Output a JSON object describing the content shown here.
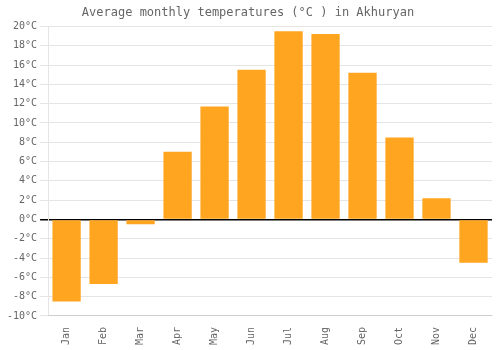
{
  "chart_data": {
    "type": "bar",
    "title": "Average monthly temperatures (°C ) in Akhuryan",
    "categories": [
      "Jan",
      "Feb",
      "Mar",
      "Apr",
      "May",
      "Jun",
      "Jul",
      "Aug",
      "Sep",
      "Oct",
      "Nov",
      "Dec"
    ],
    "values": [
      -8.5,
      -6.7,
      -0.5,
      7.0,
      11.7,
      15.5,
      19.5,
      19.2,
      15.2,
      8.5,
      2.2,
      -4.5
    ],
    "color": "#FFA520",
    "ylim": [
      -10,
      20
    ],
    "yticks": [
      {
        "value": -10,
        "label": "-10°C"
      },
      {
        "value": -8,
        "label": "-8°C"
      },
      {
        "value": -6,
        "label": "-6°C"
      },
      {
        "value": -4,
        "label": "-4°C"
      },
      {
        "value": -2,
        "label": "-2°C"
      },
      {
        "value": 0,
        "label": "0°C"
      },
      {
        "value": 2,
        "label": "2°C"
      },
      {
        "value": 4,
        "label": "4°C"
      },
      {
        "value": 6,
        "label": "6°C"
      },
      {
        "value": 8,
        "label": "8°C"
      },
      {
        "value": 10,
        "label": "10°C"
      },
      {
        "value": 12,
        "label": "12°C"
      },
      {
        "value": 14,
        "label": "14°C"
      },
      {
        "value": 16,
        "label": "16°C"
      },
      {
        "value": 18,
        "label": "18°C"
      },
      {
        "value": 20,
        "label": "20°C"
      }
    ],
    "grid": true
  }
}
